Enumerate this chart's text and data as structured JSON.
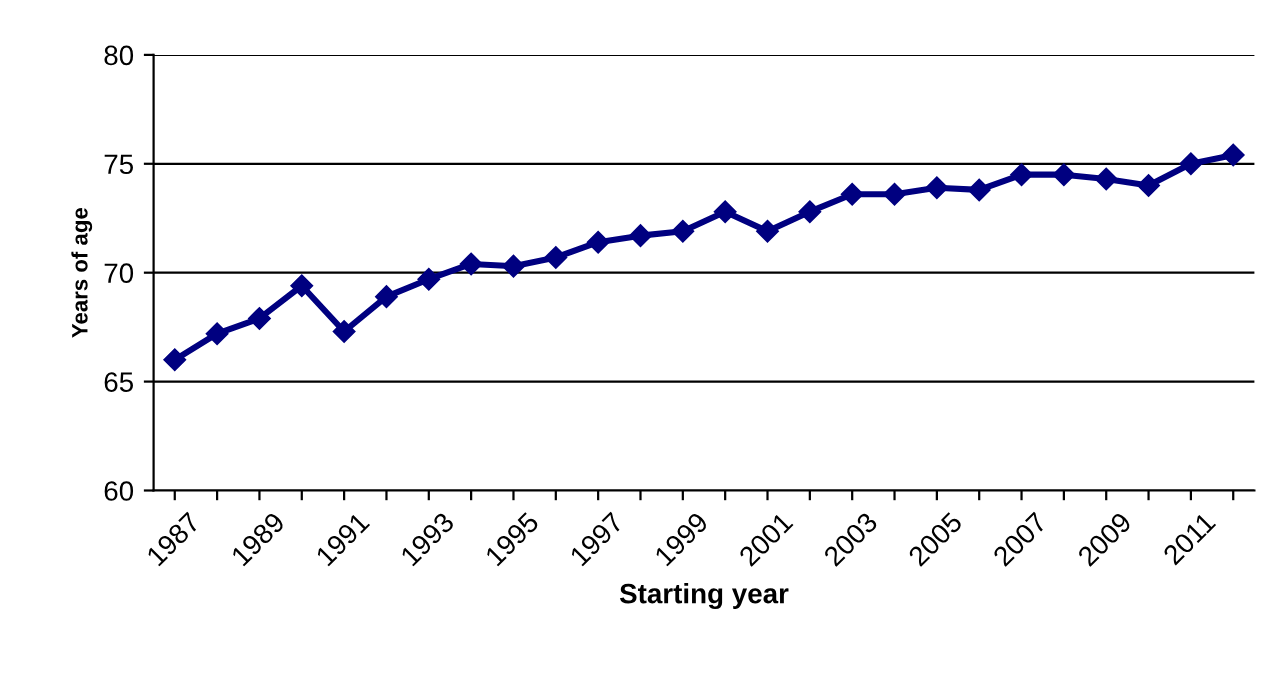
{
  "chart_data": {
    "type": "line",
    "xlabel": "Starting year",
    "ylabel": "Years of age",
    "categories": [
      "1987",
      null,
      "1989",
      null,
      "1991",
      null,
      "1993",
      null,
      "1995",
      null,
      "1997",
      null,
      "1999",
      null,
      "2001",
      null,
      "2003",
      null,
      "2005",
      null,
      "2007",
      null,
      "2009",
      null,
      "2011",
      null
    ],
    "series": [
      {
        "color": "#000080",
        "values": [
          66.0,
          67.2,
          67.9,
          69.4,
          67.3,
          68.9,
          69.7,
          70.4,
          70.3,
          70.7,
          71.4,
          71.7,
          71.9,
          72.8,
          71.9,
          72.8,
          73.6,
          73.6,
          73.9,
          73.8,
          74.5,
          74.5,
          74.3,
          74.0,
          75.0,
          75.4
        ]
      }
    ],
    "ylim": [
      60,
      80
    ],
    "yticks": [
      60,
      65,
      70,
      75,
      80
    ],
    "grid": "y",
    "marker": "diamond",
    "line_style": "solid",
    "legend": false
  }
}
